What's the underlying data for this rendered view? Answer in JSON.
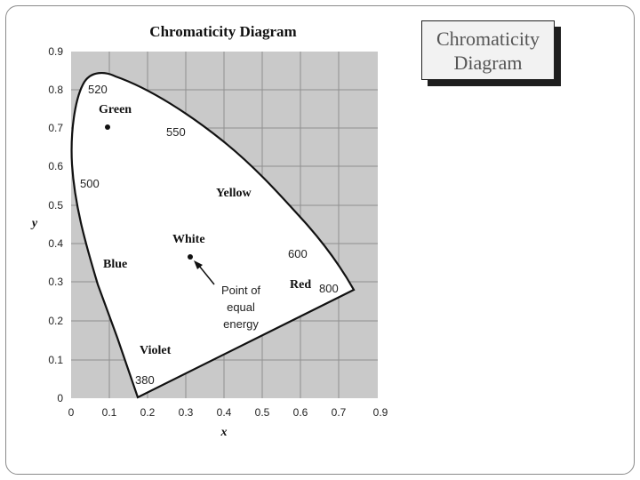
{
  "slide": {
    "title_box": "Chromaticity Diagram"
  },
  "figure": {
    "title": "Chromaticity Diagram",
    "x_axis_label": "x",
    "y_axis_label": "y",
    "x_ticks": [
      "0",
      "0.1",
      "0.2",
      "0.3",
      "0.4",
      "0.5",
      "0.6",
      "0.7",
      "0.9"
    ],
    "y_ticks": [
      "0",
      "0.1",
      "0.2",
      "0.3",
      "0.4",
      "0.5",
      "0.6",
      "0.7",
      "0.8",
      "0.9"
    ],
    "wavelength_labels": [
      "520",
      "550",
      "500",
      "600",
      "800",
      "380"
    ],
    "color_labels": [
      "Green",
      "Yellow",
      "White",
      "Blue",
      "Red",
      "Violet"
    ],
    "annotation": [
      "Point of",
      "equal",
      "energy"
    ],
    "colors": {
      "plot_background": "#c9c9c9",
      "gamut_fill": "#ffffff",
      "grid": "#8f8f8f",
      "text": "#111111"
    }
  }
}
